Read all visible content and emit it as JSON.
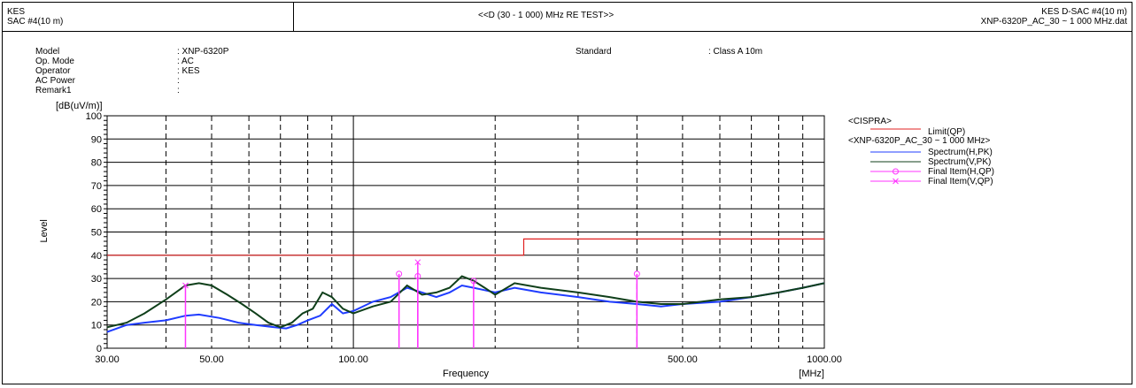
{
  "header": {
    "org": "KES",
    "site": "SAC #4(10 m)",
    "title": "<<D (30 - 1 000) MHz RE TEST>>",
    "right_line1": "KES D-SAC #4(10 m)",
    "right_line2": "XNP-6320P_AC_30 ~ 1 000 MHz.dat"
  },
  "info": {
    "labels": [
      "Model",
      "Op. Mode",
      "Operator",
      "AC Power",
      "Remark1"
    ],
    "values": [
      ": XNP-6320P",
      ": AC",
      ": KES",
      ":",
      ":"
    ],
    "standard_label": "Standard",
    "standard_value": ": Class A 10m"
  },
  "colors": {
    "limit": "#e02020",
    "spectrum_h": "#1f3cff",
    "spectrum_v": "#0f3f1a",
    "final": "#ff33ff",
    "grid": "#000000"
  },
  "chart_data": {
    "type": "line",
    "xscale": "log",
    "xlim": [
      30,
      1000
    ],
    "ylim": [
      0,
      100
    ],
    "yunit": "[dB(uV/m)]",
    "ylabel": "Level",
    "xlabel": "Frequency",
    "xunit": "[MHz]",
    "yticks": [
      0,
      10,
      20,
      30,
      40,
      50,
      60,
      70,
      80,
      90,
      100
    ],
    "xtick_labels": [
      {
        "value": 30,
        "label": "30.00"
      },
      {
        "value": 50,
        "label": "50.00"
      },
      {
        "value": 100,
        "label": "100.00"
      },
      {
        "value": 500,
        "label": "500.00"
      },
      {
        "value": 1000,
        "label": "1000.00"
      }
    ],
    "grid_major_x": [
      30,
      100,
      1000
    ],
    "grid_dashed_x": [
      40,
      50,
      60,
      70,
      80,
      90,
      200,
      300,
      400,
      500,
      600,
      700,
      800,
      900
    ],
    "limit": {
      "name": "Limit(QP)",
      "points": [
        [
          30,
          40
        ],
        [
          230,
          40
        ],
        [
          230,
          47
        ],
        [
          1000,
          47
        ]
      ]
    },
    "series": [
      {
        "name": "Spectrum(H,PK)",
        "points": [
          [
            30,
            7
          ],
          [
            33,
            10
          ],
          [
            36,
            11
          ],
          [
            40,
            12
          ],
          [
            44,
            14
          ],
          [
            47,
            14.5
          ],
          [
            52,
            13
          ],
          [
            57,
            11
          ],
          [
            62,
            10
          ],
          [
            68,
            9
          ],
          [
            72,
            8.5
          ],
          [
            76,
            10
          ],
          [
            80,
            12
          ],
          [
            85,
            14
          ],
          [
            90,
            19
          ],
          [
            95,
            15
          ],
          [
            100,
            16
          ],
          [
            110,
            20
          ],
          [
            120,
            22
          ],
          [
            130,
            26
          ],
          [
            140,
            24
          ],
          [
            150,
            22
          ],
          [
            160,
            24
          ],
          [
            170,
            27
          ],
          [
            180,
            26
          ],
          [
            190,
            25
          ],
          [
            200,
            24
          ],
          [
            220,
            26
          ],
          [
            250,
            24
          ],
          [
            300,
            22
          ],
          [
            350,
            20
          ],
          [
            400,
            19
          ],
          [
            450,
            18
          ],
          [
            500,
            19
          ],
          [
            600,
            20
          ],
          [
            700,
            22
          ],
          [
            800,
            24
          ],
          [
            900,
            26
          ],
          [
            1000,
            28
          ]
        ]
      },
      {
        "name": "Spectrum(V,PK)",
        "points": [
          [
            30,
            9
          ],
          [
            33,
            11
          ],
          [
            36,
            15
          ],
          [
            40,
            21
          ],
          [
            44,
            27
          ],
          [
            47,
            28
          ],
          [
            50,
            27
          ],
          [
            54,
            23
          ],
          [
            58,
            19
          ],
          [
            62,
            15
          ],
          [
            66,
            11
          ],
          [
            70,
            9
          ],
          [
            74,
            11
          ],
          [
            78,
            15
          ],
          [
            82,
            17
          ],
          [
            86,
            24
          ],
          [
            90,
            22
          ],
          [
            95,
            17
          ],
          [
            100,
            15
          ],
          [
            110,
            18
          ],
          [
            120,
            20
          ],
          [
            130,
            27
          ],
          [
            140,
            23
          ],
          [
            150,
            24
          ],
          [
            160,
            26
          ],
          [
            170,
            31
          ],
          [
            180,
            29
          ],
          [
            190,
            26
          ],
          [
            200,
            23
          ],
          [
            220,
            28
          ],
          [
            250,
            26
          ],
          [
            300,
            24
          ],
          [
            350,
            22
          ],
          [
            400,
            20
          ],
          [
            450,
            19
          ],
          [
            500,
            19
          ],
          [
            600,
            21
          ],
          [
            700,
            22
          ],
          [
            800,
            24
          ],
          [
            900,
            26
          ],
          [
            1000,
            28
          ]
        ]
      }
    ],
    "final_h": {
      "name": "Final Item(H,QP)",
      "freqs": [
        125,
        137,
        180,
        400
      ],
      "levels": [
        32,
        31,
        29,
        32
      ]
    },
    "final_v": {
      "name": "Final Item(V,QP)",
      "freqs": [
        44,
        137
      ],
      "levels": [
        27,
        37
      ]
    },
    "legend": {
      "group1": "<CISPRA>",
      "group2": "<XNP-6320P_AC_30 ~ 1 000 MHz>"
    }
  }
}
